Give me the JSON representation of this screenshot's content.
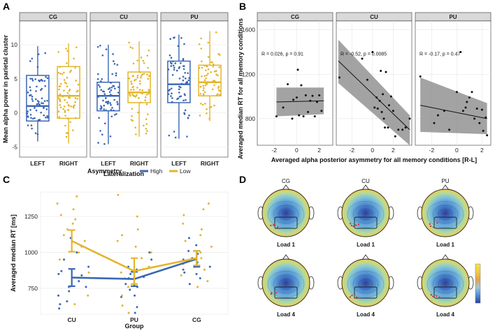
{
  "chart_data": [
    {
      "panel": "A",
      "type": "box",
      "ylabel": "Mean alpha power in parietal cluster",
      "xlabel": "Lateralization",
      "ylim": [
        -6.5,
        13.5
      ],
      "yticks": [
        -5,
        0,
        5,
        10
      ],
      "facets": [
        "CG",
        "CU",
        "PU"
      ],
      "categories": [
        "LEFT",
        "RIGHT"
      ],
      "colors": {
        "LEFT": "#3a66b5",
        "RIGHT": "#e3b52b"
      },
      "boxes": [
        {
          "facet": "CG",
          "side": "LEFT",
          "min": -4.2,
          "q1": -1.2,
          "median": 1.0,
          "q3": 5.5,
          "max": 9.8
        },
        {
          "facet": "CG",
          "side": "RIGHT",
          "min": -4.5,
          "q1": -0.8,
          "median": 2.5,
          "q3": 6.8,
          "max": 10.2
        },
        {
          "facet": "CU",
          "side": "LEFT",
          "min": -4.6,
          "q1": 0.3,
          "median": 2.5,
          "q3": 4.5,
          "max": 10.0
        },
        {
          "facet": "CU",
          "side": "RIGHT",
          "min": -3.5,
          "q1": 1.5,
          "median": 3.0,
          "q3": 6.0,
          "max": 10.5
        },
        {
          "facet": "PU",
          "side": "LEFT",
          "min": -3.8,
          "q1": 1.5,
          "median": 4.2,
          "q3": 7.6,
          "max": 11.5
        },
        {
          "facet": "PU",
          "side": "RIGHT",
          "min": -1.2,
          "q1": 2.5,
          "median": 4.5,
          "q3": 7.0,
          "max": 12.0
        }
      ]
    },
    {
      "panel": "B",
      "type": "scatter",
      "ylabel": "Averaged median RT for all memory conditions",
      "xlabel": "Averaged alpha posterior asymmetry for all memory conditions [R-L]",
      "ylim": [
        560,
        1680
      ],
      "yticks": [
        800,
        1200,
        1600
      ],
      "facets": [
        {
          "name": "CG",
          "xlim": [
            -3.5,
            3.2
          ],
          "xticks": [
            -2,
            0,
            2
          ],
          "stat": "R = 0.026, p = 0.91",
          "fit": {
            "x0": -1.8,
            "y0": 950,
            "x1": 2.4,
            "y1": 960
          },
          "band": {
            "lo0": 820,
            "hi0": 1080,
            "lo1": 840,
            "hi1": 1080
          },
          "points": [
            [
              -1.8,
              820
            ],
            [
              -1.2,
              900
            ],
            [
              -0.8,
              1110
            ],
            [
              -0.3,
              970
            ],
            [
              0,
              990
            ],
            [
              0.2,
              830
            ],
            [
              0.4,
              1100
            ],
            [
              0.6,
              820
            ],
            [
              0.8,
              1010
            ],
            [
              1,
              860
            ],
            [
              1.2,
              960
            ],
            [
              1.4,
              1005
            ],
            [
              1.6,
              820
            ],
            [
              1.8,
              950
            ],
            [
              2.0,
              1010
            ],
            [
              2.2,
              870
            ],
            [
              0.1,
              1240
            ],
            [
              -0.4,
              800
            ]
          ]
        },
        {
          "name": "CU",
          "xlim": [
            -3.5,
            3.8
          ],
          "xticks": [
            -2,
            0,
            2
          ],
          "stat": "R = -0.52, p = 0.0085",
          "fit": {
            "x0": -3.3,
            "y0": 1320,
            "x1": 3.6,
            "y1": 700
          },
          "band": {
            "lo0": 1120,
            "hi0": 1510,
            "lo1": 560,
            "hi1": 830
          },
          "points": [
            [
              -3.2,
              1170
            ],
            [
              -1,
              1340
            ],
            [
              -0.5,
              1150
            ],
            [
              0,
              1400
            ],
            [
              0.2,
              900
            ],
            [
              0.4,
              990
            ],
            [
              0.5,
              890
            ],
            [
              0.7,
              960
            ],
            [
              0.8,
              1230
            ],
            [
              1,
              1020
            ],
            [
              1.1,
              800
            ],
            [
              1.2,
              720
            ],
            [
              1.5,
              720
            ],
            [
              1.6,
              920
            ],
            [
              1.8,
              1000
            ],
            [
              2,
              870
            ],
            [
              2.2,
              640
            ],
            [
              2.5,
              700
            ],
            [
              3.2,
              720
            ],
            [
              3.6,
              800
            ],
            [
              1.3,
              1220
            ],
            [
              0.9,
              860
            ],
            [
              2.9,
              700
            ]
          ]
        },
        {
          "name": "PU",
          "xlim": [
            -3.3,
            2.7
          ],
          "xticks": [
            -2,
            0,
            2
          ],
          "stat": "R = -0.17, p = 0.47",
          "fit": {
            "x0": -2.9,
            "y0": 920,
            "x1": 2.4,
            "y1": 800
          },
          "band": {
            "lo0": 680,
            "hi0": 1170,
            "lo1": 660,
            "hi1": 940
          },
          "points": [
            [
              -2.9,
              1180
            ],
            [
              -1.8,
              760
            ],
            [
              -1.5,
              830
            ],
            [
              -1,
              870
            ],
            [
              -0.6,
              700
            ],
            [
              0,
              1040
            ],
            [
              0.3,
              1400
            ],
            [
              0.5,
              870
            ],
            [
              0.8,
              950
            ],
            [
              1,
              990
            ],
            [
              1.2,
              1040
            ],
            [
              1.4,
              800
            ],
            [
              1.6,
              890
            ],
            [
              1.8,
              760
            ],
            [
              2,
              880
            ],
            [
              2.1,
              690
            ],
            [
              2.3,
              810
            ],
            [
              2.4,
              650
            ],
            [
              0.7,
              900
            ]
          ]
        }
      ]
    },
    {
      "panel": "C",
      "type": "line",
      "title": "Asymmetry",
      "legend": [
        "High",
        "Low"
      ],
      "categories": [
        "CU",
        "PU",
        "CG"
      ],
      "xlabel": "Group",
      "ylabel": "Averaged median RT [ms]",
      "ylim": [
        570,
        1420
      ],
      "yticks": [
        750,
        1000,
        1250
      ],
      "series": [
        {
          "name": "High",
          "color": "#3a66b5",
          "values": [
            825,
            815,
            955
          ],
          "err": [
            60,
            50,
            55
          ],
          "jitter": [
            [
              610,
              640,
              700,
              730,
              760,
              800,
              840,
              870,
              900,
              1000,
              1100,
              660,
              760,
              850,
              950
            ],
            [
              580,
              620,
              690,
              740,
              780,
              820,
              850,
              880,
              900,
              950,
              1000,
              700,
              760,
              830
            ],
            [
              780,
              820,
              850,
              880,
              900,
              930,
              960,
              990,
              1010,
              1050,
              1100,
              860,
              900,
              950
            ]
          ]
        },
        {
          "name": "Low",
          "color": "#e3b52b",
          "values": [
            1080,
            870,
            960
          ],
          "err": [
            75,
            90,
            50
          ],
          "jitter": [
            [
              640,
              700,
              760,
              860,
              950,
              1000,
              1040,
              1080,
              1120,
              1160,
              1200,
              1230,
              1260,
              1300,
              1340,
              1390
            ],
            [
              580,
              630,
              700,
              760,
              820,
              860,
              900,
              960,
              1000,
              1040,
              1080,
              1120,
              1160,
              1250,
              1400
            ],
            [
              760,
              800,
              840,
              880,
              920,
              960,
              1000,
              1040,
              1080,
              1120,
              1160,
              1200,
              1260,
              1300,
              1340
            ]
          ]
        }
      ]
    }
  ],
  "panel_labels": {
    "a": "A",
    "b": "B",
    "c": "C",
    "d": "D"
  },
  "topo": {
    "columns": [
      "CG",
      "CU",
      "PU"
    ],
    "rows": [
      "Load 1",
      "Load 4"
    ],
    "colorbar_colors": [
      "#f7e34b",
      "#f1c94c",
      "#e5a24a",
      "#9fc8dc",
      "#4f8fd1",
      "#2c3f9d"
    ]
  }
}
